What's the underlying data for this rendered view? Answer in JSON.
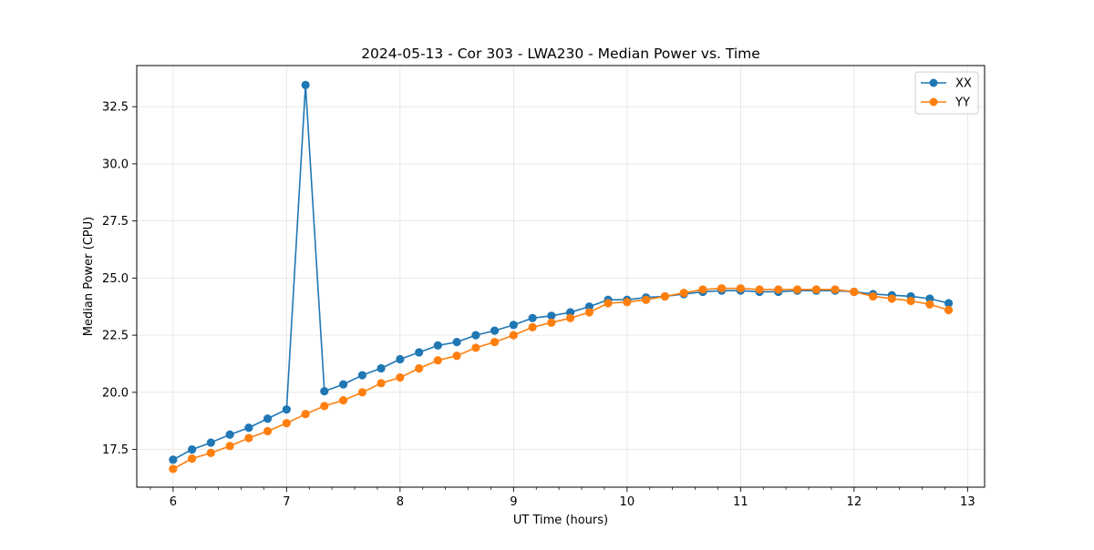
{
  "chart_data": {
    "type": "line",
    "title": "2024-05-13 - Cor 303 - LWA230 - Median Power vs. Time",
    "xlabel": "UT Time (hours)",
    "ylabel": "Median Power (CPU)",
    "xlim": [
      5.68,
      13.15
    ],
    "ylim": [
      15.85,
      34.3
    ],
    "xticks": [
      6,
      7,
      8,
      9,
      10,
      11,
      12,
      13
    ],
    "xtick_labels": [
      "6",
      "7",
      "8",
      "9",
      "10",
      "11",
      "12",
      "13"
    ],
    "x_minor_step": 0.2,
    "yticks": [
      17.5,
      20.0,
      22.5,
      25.0,
      27.5,
      30.0,
      32.5
    ],
    "ytick_labels": [
      "17.5",
      "20.0",
      "22.5",
      "25.0",
      "27.5",
      "30.0",
      "32.5"
    ],
    "grid": true,
    "legend_position": "top-right",
    "x": [
      6.0,
      6.167,
      6.333,
      6.5,
      6.667,
      6.833,
      7.0,
      7.167,
      7.333,
      7.5,
      7.667,
      7.833,
      8.0,
      8.167,
      8.333,
      8.5,
      8.667,
      8.833,
      9.0,
      9.167,
      9.333,
      9.5,
      9.667,
      9.833,
      10.0,
      10.167,
      10.333,
      10.5,
      10.667,
      10.833,
      11.0,
      11.167,
      11.333,
      11.5,
      11.667,
      11.833,
      12.0,
      12.167,
      12.333,
      12.5,
      12.667,
      12.833
    ],
    "series": [
      {
        "name": "XX",
        "color": "#1f77b4",
        "values": [
          17.05,
          17.5,
          17.8,
          18.15,
          18.45,
          18.85,
          19.25,
          33.45,
          20.05,
          20.35,
          20.75,
          21.05,
          21.45,
          21.75,
          22.05,
          22.2,
          22.5,
          22.7,
          22.95,
          23.25,
          23.35,
          23.5,
          23.75,
          24.05,
          24.05,
          24.15,
          24.2,
          24.3,
          24.4,
          24.45,
          24.45,
          24.4,
          24.4,
          24.45,
          24.45,
          24.45,
          24.4,
          24.3,
          24.25,
          24.2,
          24.1,
          23.9
        ]
      },
      {
        "name": "YY",
        "color": "#ff7f0e",
        "values": [
          16.65,
          17.1,
          17.35,
          17.65,
          18.0,
          18.3,
          18.65,
          19.05,
          19.4,
          19.65,
          20.0,
          20.4,
          20.65,
          21.05,
          21.4,
          21.6,
          21.95,
          22.2,
          22.5,
          22.85,
          23.05,
          23.25,
          23.5,
          23.9,
          23.95,
          24.05,
          24.2,
          24.35,
          24.5,
          24.55,
          24.55,
          24.5,
          24.5,
          24.5,
          24.5,
          24.5,
          24.4,
          24.2,
          24.1,
          24.0,
          23.85,
          23.6
        ]
      }
    ]
  }
}
